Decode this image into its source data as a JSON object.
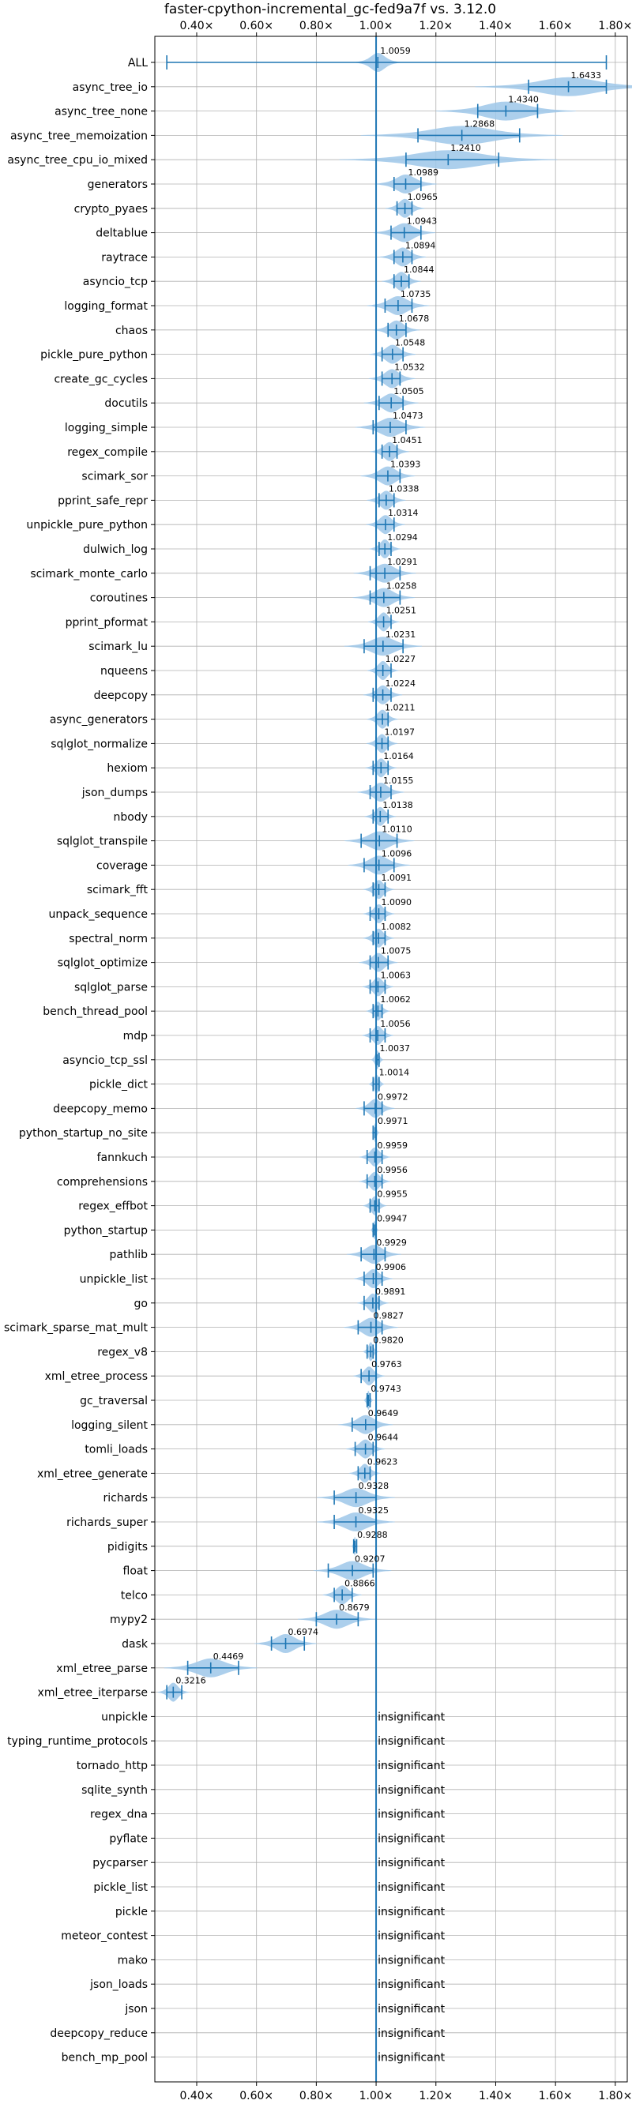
{
  "chart_data": {
    "type": "violin",
    "title": "faster-cpython-incremental_gc-fed9a7f vs. 3.12.0",
    "xlim": [
      0.26,
      1.84
    ],
    "xticks": [
      0.4,
      0.6,
      0.8,
      1.0,
      1.2,
      1.4,
      1.6,
      1.8
    ],
    "xtick_labels": [
      "0.40×",
      "0.60×",
      "0.80×",
      "1.00×",
      "1.20×",
      "1.40×",
      "1.60×",
      "1.80×"
    ],
    "reference_line": 1.0,
    "grid": true,
    "colors": {
      "violin": "#9ec7e9",
      "line": "#1f77b4"
    },
    "insignificant_text": "insignificant",
    "rows": [
      {
        "name": "ALL",
        "value": "1.0059",
        "center": 1.0059,
        "min": 0.3,
        "max": 1.77,
        "spread": 0.03
      },
      {
        "name": "async_tree_io",
        "value": "1.6433",
        "center": 1.6433,
        "min": 1.51,
        "max": 1.77,
        "spread": 0.12
      },
      {
        "name": "async_tree_none",
        "value": "1.4340",
        "center": 1.434,
        "min": 1.34,
        "max": 1.54,
        "spread": 0.09
      },
      {
        "name": "async_tree_memoization",
        "value": "1.2868",
        "center": 1.2868,
        "min": 1.14,
        "max": 1.48,
        "spread": 0.13
      },
      {
        "name": "async_tree_cpu_io_mixed",
        "value": "1.2410",
        "center": 1.241,
        "min": 1.1,
        "max": 1.41,
        "spread": 0.14
      },
      {
        "name": "generators",
        "value": "1.0989",
        "center": 1.0989,
        "min": 1.06,
        "max": 1.15,
        "spread": 0.04
      },
      {
        "name": "crypto_pyaes",
        "value": "1.0965",
        "center": 1.0965,
        "min": 1.07,
        "max": 1.12,
        "spread": 0.025
      },
      {
        "name": "deltablue",
        "value": "1.0943",
        "center": 1.0943,
        "min": 1.05,
        "max": 1.15,
        "spread": 0.04
      },
      {
        "name": "raytrace",
        "value": "1.0894",
        "center": 1.0894,
        "min": 1.06,
        "max": 1.12,
        "spread": 0.03
      },
      {
        "name": "asyncio_tcp",
        "value": "1.0844",
        "center": 1.0844,
        "min": 1.06,
        "max": 1.11,
        "spread": 0.025
      },
      {
        "name": "logging_format",
        "value": "1.0735",
        "center": 1.0735,
        "min": 1.03,
        "max": 1.12,
        "spread": 0.04
      },
      {
        "name": "chaos",
        "value": "1.0678",
        "center": 1.0678,
        "min": 1.04,
        "max": 1.1,
        "spread": 0.03
      },
      {
        "name": "pickle_pure_python",
        "value": "1.0548",
        "center": 1.0548,
        "min": 1.02,
        "max": 1.09,
        "spread": 0.03
      },
      {
        "name": "create_gc_cycles",
        "value": "1.0532",
        "center": 1.0532,
        "min": 1.02,
        "max": 1.08,
        "spread": 0.03
      },
      {
        "name": "docutils",
        "value": "1.0505",
        "center": 1.0505,
        "min": 1.01,
        "max": 1.09,
        "spread": 0.035
      },
      {
        "name": "logging_simple",
        "value": "1.0473",
        "center": 1.0473,
        "min": 0.99,
        "max": 1.1,
        "spread": 0.045
      },
      {
        "name": "regex_compile",
        "value": "1.0451",
        "center": 1.0451,
        "min": 1.02,
        "max": 1.07,
        "spread": 0.025
      },
      {
        "name": "scimark_sor",
        "value": "1.0393",
        "center": 1.0393,
        "min": 1.0,
        "max": 1.08,
        "spread": 0.035
      },
      {
        "name": "pprint_safe_repr",
        "value": "1.0338",
        "center": 1.0338,
        "min": 1.01,
        "max": 1.06,
        "spread": 0.025
      },
      {
        "name": "unpickle_pure_python",
        "value": "1.0314",
        "center": 1.0314,
        "min": 1.0,
        "max": 1.06,
        "spread": 0.025
      },
      {
        "name": "dulwich_log",
        "value": "1.0294",
        "center": 1.0294,
        "min": 1.01,
        "max": 1.05,
        "spread": 0.02
      },
      {
        "name": "scimark_monte_carlo",
        "value": "1.0291",
        "center": 1.0291,
        "min": 0.98,
        "max": 1.08,
        "spread": 0.04
      },
      {
        "name": "coroutines",
        "value": "1.0258",
        "center": 1.0258,
        "min": 0.98,
        "max": 1.08,
        "spread": 0.04
      },
      {
        "name": "pprint_pformat",
        "value": "1.0251",
        "center": 1.0251,
        "min": 1.0,
        "max": 1.05,
        "spread": 0.02
      },
      {
        "name": "scimark_lu",
        "value": "1.0231",
        "center": 1.0231,
        "min": 0.96,
        "max": 1.09,
        "spread": 0.05
      },
      {
        "name": "nqueens",
        "value": "1.0227",
        "center": 1.0227,
        "min": 1.0,
        "max": 1.05,
        "spread": 0.02
      },
      {
        "name": "deepcopy",
        "value": "1.0224",
        "center": 1.0224,
        "min": 0.99,
        "max": 1.05,
        "spread": 0.025
      },
      {
        "name": "async_generators",
        "value": "1.0211",
        "center": 1.0211,
        "min": 1.0,
        "max": 1.04,
        "spread": 0.02
      },
      {
        "name": "sqlglot_normalize",
        "value": "1.0197",
        "center": 1.0197,
        "min": 1.0,
        "max": 1.04,
        "spread": 0.02
      },
      {
        "name": "hexiom",
        "value": "1.0164",
        "center": 1.0164,
        "min": 0.99,
        "max": 1.04,
        "spread": 0.02
      },
      {
        "name": "json_dumps",
        "value": "1.0155",
        "center": 1.0155,
        "min": 0.98,
        "max": 1.05,
        "spread": 0.03
      },
      {
        "name": "nbody",
        "value": "1.0138",
        "center": 1.0138,
        "min": 0.99,
        "max": 1.04,
        "spread": 0.02
      },
      {
        "name": "sqlglot_transpile",
        "value": "1.0110",
        "center": 1.011,
        "min": 0.95,
        "max": 1.07,
        "spread": 0.045
      },
      {
        "name": "coverage",
        "value": "1.0096",
        "center": 1.0096,
        "min": 0.96,
        "max": 1.06,
        "spread": 0.04
      },
      {
        "name": "scimark_fft",
        "value": "1.0091",
        "center": 1.0091,
        "min": 0.99,
        "max": 1.03,
        "spread": 0.02
      },
      {
        "name": "unpack_sequence",
        "value": "1.0090",
        "center": 1.009,
        "min": 0.98,
        "max": 1.03,
        "spread": 0.02
      },
      {
        "name": "spectral_norm",
        "value": "1.0082",
        "center": 1.0082,
        "min": 0.99,
        "max": 1.03,
        "spread": 0.02
      },
      {
        "name": "sqlglot_optimize",
        "value": "1.0075",
        "center": 1.0075,
        "min": 0.98,
        "max": 1.04,
        "spread": 0.025
      },
      {
        "name": "sqlglot_parse",
        "value": "1.0063",
        "center": 1.0063,
        "min": 0.98,
        "max": 1.03,
        "spread": 0.02
      },
      {
        "name": "bench_thread_pool",
        "value": "1.0062",
        "center": 1.0062,
        "min": 0.99,
        "max": 1.02,
        "spread": 0.015
      },
      {
        "name": "mdp",
        "value": "1.0056",
        "center": 1.0056,
        "min": 0.98,
        "max": 1.03,
        "spread": 0.02
      },
      {
        "name": "asyncio_tcp_ssl",
        "value": "1.0037",
        "center": 1.0037,
        "min": 1.0,
        "max": 1.01,
        "spread": 0.008
      },
      {
        "name": "pickle_dict",
        "value": "1.0014",
        "center": 1.0014,
        "min": 0.99,
        "max": 1.01,
        "spread": 0.01
      },
      {
        "name": "deepcopy_memo",
        "value": "0.9972",
        "center": 0.9972,
        "min": 0.96,
        "max": 1.02,
        "spread": 0.025
      },
      {
        "name": "python_startup_no_site",
        "value": "0.9971",
        "center": 0.9971,
        "min": 0.99,
        "max": 1.0,
        "spread": 0.005
      },
      {
        "name": "fannkuch",
        "value": "0.9959",
        "center": 0.9959,
        "min": 0.97,
        "max": 1.02,
        "spread": 0.02
      },
      {
        "name": "comprehensions",
        "value": "0.9956",
        "center": 0.9956,
        "min": 0.97,
        "max": 1.02,
        "spread": 0.02
      },
      {
        "name": "regex_effbot",
        "value": "0.9955",
        "center": 0.9955,
        "min": 0.98,
        "max": 1.01,
        "spread": 0.015
      },
      {
        "name": "python_startup",
        "value": "0.9947",
        "center": 0.9947,
        "min": 0.99,
        "max": 1.0,
        "spread": 0.005
      },
      {
        "name": "pathlib",
        "value": "0.9929",
        "center": 0.9929,
        "min": 0.95,
        "max": 1.03,
        "spread": 0.035
      },
      {
        "name": "unpickle_list",
        "value": "0.9906",
        "center": 0.9906,
        "min": 0.96,
        "max": 1.02,
        "spread": 0.025
      },
      {
        "name": "go",
        "value": "0.9891",
        "center": 0.9891,
        "min": 0.96,
        "max": 1.01,
        "spread": 0.02
      },
      {
        "name": "scimark_sparse_mat_mult",
        "value": "0.9827",
        "center": 0.9827,
        "min": 0.94,
        "max": 1.02,
        "spread": 0.035
      },
      {
        "name": "regex_v8",
        "value": "0.9820",
        "center": 0.982,
        "min": 0.97,
        "max": 0.99,
        "spread": 0.01
      },
      {
        "name": "xml_etree_process",
        "value": "0.9763",
        "center": 0.9763,
        "min": 0.95,
        "max": 1.0,
        "spread": 0.02
      },
      {
        "name": "gc_traversal",
        "value": "0.9743",
        "center": 0.9743,
        "min": 0.97,
        "max": 0.98,
        "spread": 0.006
      },
      {
        "name": "logging_silent",
        "value": "0.9649",
        "center": 0.9649,
        "min": 0.92,
        "max": 1.0,
        "spread": 0.035
      },
      {
        "name": "tomli_loads",
        "value": "0.9644",
        "center": 0.9644,
        "min": 0.93,
        "max": 0.99,
        "spread": 0.025
      },
      {
        "name": "xml_etree_generate",
        "value": "0.9623",
        "center": 0.9623,
        "min": 0.94,
        "max": 0.98,
        "spread": 0.02
      },
      {
        "name": "richards",
        "value": "0.9328",
        "center": 0.9328,
        "min": 0.86,
        "max": 1.0,
        "spread": 0.05
      },
      {
        "name": "richards_super",
        "value": "0.9325",
        "center": 0.9325,
        "min": 0.86,
        "max": 1.0,
        "spread": 0.05
      },
      {
        "name": "pidigits",
        "value": "0.9288",
        "center": 0.9288,
        "min": 0.925,
        "max": 0.935,
        "spread": 0.004
      },
      {
        "name": "float",
        "value": "0.9207",
        "center": 0.9207,
        "min": 0.84,
        "max": 0.99,
        "spread": 0.05
      },
      {
        "name": "telco",
        "value": "0.8866",
        "center": 0.8866,
        "min": 0.86,
        "max": 0.92,
        "spread": 0.025
      },
      {
        "name": "mypy2",
        "value": "0.8679",
        "center": 0.8679,
        "min": 0.8,
        "max": 0.94,
        "spread": 0.05
      },
      {
        "name": "dask",
        "value": "0.6974",
        "center": 0.6974,
        "min": 0.65,
        "max": 0.76,
        "spread": 0.04
      },
      {
        "name": "xml_etree_parse",
        "value": "0.4469",
        "center": 0.4469,
        "min": 0.37,
        "max": 0.54,
        "spread": 0.06
      },
      {
        "name": "xml_etree_iterparse",
        "value": "0.3216",
        "center": 0.3216,
        "min": 0.3,
        "max": 0.35,
        "spread": 0.02
      },
      {
        "name": "unpickle",
        "insignificant": true
      },
      {
        "name": "typing_runtime_protocols",
        "insignificant": true
      },
      {
        "name": "tornado_http",
        "insignificant": true
      },
      {
        "name": "sqlite_synth",
        "insignificant": true
      },
      {
        "name": "regex_dna",
        "insignificant": true
      },
      {
        "name": "pyflate",
        "insignificant": true
      },
      {
        "name": "pycparser",
        "insignificant": true
      },
      {
        "name": "pickle_list",
        "insignificant": true
      },
      {
        "name": "pickle",
        "insignificant": true
      },
      {
        "name": "meteor_contest",
        "insignificant": true
      },
      {
        "name": "mako",
        "insignificant": true
      },
      {
        "name": "json_loads",
        "insignificant": true
      },
      {
        "name": "json",
        "insignificant": true
      },
      {
        "name": "deepcopy_reduce",
        "insignificant": true
      },
      {
        "name": "bench_mp_pool",
        "insignificant": true
      }
    ]
  }
}
